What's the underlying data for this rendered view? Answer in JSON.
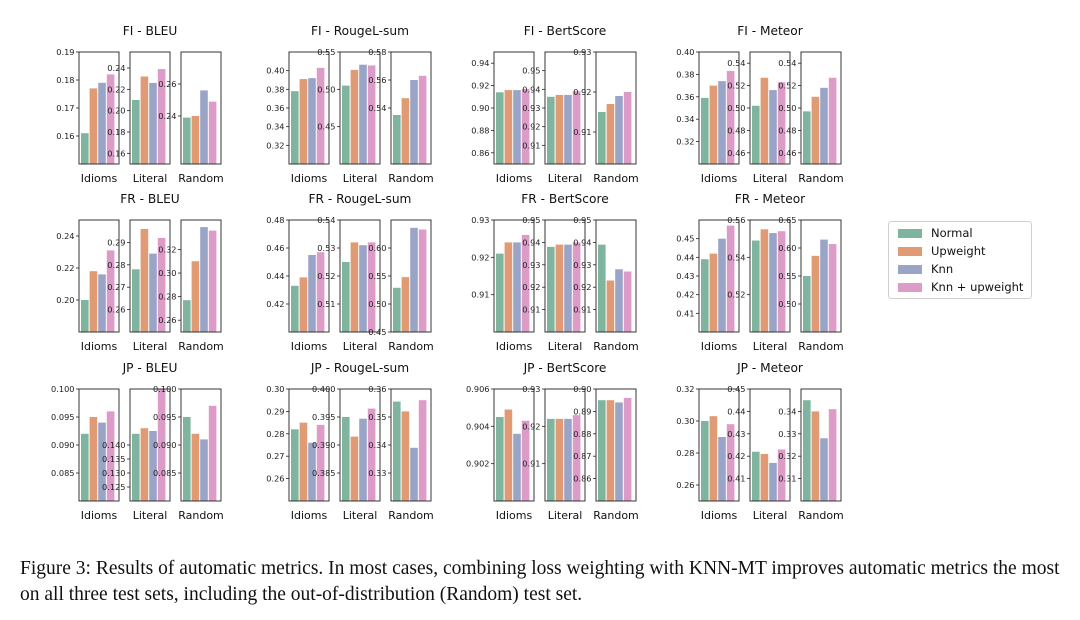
{
  "colors": {
    "Normal": "#7fb59e",
    "Upweight": "#e09a74",
    "Knn": "#9aa4c6",
    "Knn + upweight": "#dd9bc8"
  },
  "legend": {
    "items": [
      {
        "label": "Normal",
        "color": "#7fb59e"
      },
      {
        "label": "Upweight",
        "color": "#e09a74"
      },
      {
        "label": "Knn",
        "color": "#9aa4c6"
      },
      {
        "label": "Knn + upweight",
        "color": "#dd9bc8"
      }
    ]
  },
  "caption": "Figure 3: Results of automatic metrics. In most cases, combining loss weighting with KNN-MT improves automatic metrics the most on all three test sets, including the out-of-distribution (Random) test set.",
  "chart_data": {
    "type": "bar",
    "series_names": [
      "Normal",
      "Upweight",
      "Knn",
      "Knn + upweight"
    ],
    "panels": [
      {
        "title": "FI - BLEU",
        "groups": [
          {
            "label": "Idioms",
            "ylim": [
              0.15,
              0.19
            ],
            "ticks": [
              0.16,
              0.17,
              0.18,
              0.19
            ],
            "tick_labels": [
              "0.16",
              "0.17",
              "0.18",
              "0.19"
            ],
            "values": [
              0.161,
              0.177,
              0.179,
              0.182
            ]
          },
          {
            "label": "Literal",
            "ylim": [
              0.15,
              0.255
            ],
            "ticks": [
              0.16,
              0.18,
              0.2,
              0.22,
              0.24
            ],
            "tick_labels": [
              "0.16",
              "0.18",
              "0.20",
              "0.22",
              "0.24"
            ],
            "values": [
              0.21,
              0.232,
              0.226,
              0.239
            ]
          },
          {
            "label": "Random",
            "ylim": [
              0.21,
              0.28
            ],
            "ticks": [
              0.24,
              0.26
            ],
            "tick_labels": [
              "0.24",
              "0.26"
            ],
            "values": [
              0.239,
              0.24,
              0.256,
              0.249
            ]
          }
        ]
      },
      {
        "title": "FI - RougeL-sum",
        "groups": [
          {
            "label": "Idioms",
            "ylim": [
              0.3,
              0.42
            ],
            "ticks": [
              0.32,
              0.34,
              0.36,
              0.38,
              0.4
            ],
            "tick_labels": [
              "0.32",
              "0.34",
              "0.36",
              "0.38",
              "0.40"
            ],
            "values": [
              0.378,
              0.391,
              0.392,
              0.403
            ]
          },
          {
            "label": "Literal",
            "ylim": [
              0.4,
              0.55
            ],
            "ticks": [
              0.45,
              0.5,
              0.55
            ],
            "tick_labels": [
              "0.45",
              "0.50",
              "0.55"
            ],
            "values": [
              0.505,
              0.526,
              0.533,
              0.532
            ]
          },
          {
            "label": "Random",
            "ylim": [
              0.5,
              0.58
            ],
            "ticks": [
              0.54,
              0.56,
              0.58
            ],
            "tick_labels": [
              "0.54",
              "0.56",
              "0.58"
            ],
            "values": [
              0.535,
              0.547,
              0.56,
              0.563
            ]
          }
        ]
      },
      {
        "title": "FI - BertScore",
        "groups": [
          {
            "label": "Idioms",
            "ylim": [
              0.85,
              0.95
            ],
            "ticks": [
              0.86,
              0.88,
              0.9,
              0.92,
              0.94
            ],
            "tick_labels": [
              "0.86",
              "0.88",
              "0.90",
              "0.92",
              "0.94"
            ],
            "values": [
              0.914,
              0.916,
              0.916,
              0.917
            ]
          },
          {
            "label": "Literal",
            "ylim": [
              0.9,
              0.96
            ],
            "ticks": [
              0.91,
              0.92,
              0.93,
              0.94,
              0.95
            ],
            "tick_labels": [
              "0.91",
              "0.92",
              "0.93",
              "0.94",
              "0.95"
            ],
            "values": [
              0.936,
              0.937,
              0.937,
              0.939
            ]
          },
          {
            "label": "Random",
            "ylim": [
              0.902,
              0.93
            ],
            "ticks": [
              0.91,
              0.92,
              0.93
            ],
            "tick_labels": [
              "0.91",
              "0.92",
              "0.93"
            ],
            "values": [
              0.915,
              0.917,
              0.919,
              0.92
            ]
          }
        ]
      },
      {
        "title": "FI - Meteor",
        "groups": [
          {
            "label": "Idioms",
            "ylim": [
              0.3,
              0.4
            ],
            "ticks": [
              0.32,
              0.34,
              0.36,
              0.38,
              0.4
            ],
            "tick_labels": [
              "0.32",
              "0.34",
              "0.36",
              "0.38",
              "0.40"
            ],
            "values": [
              0.359,
              0.37,
              0.374,
              0.383
            ]
          },
          {
            "label": "Literal",
            "ylim": [
              0.45,
              0.55
            ],
            "ticks": [
              0.46,
              0.48,
              0.5,
              0.52,
              0.54
            ],
            "tick_labels": [
              "0.46",
              "0.48",
              "0.50",
              "0.52",
              "0.54"
            ],
            "values": [
              0.502,
              0.527,
              0.516,
              0.523
            ]
          },
          {
            "label": "Random",
            "ylim": [
              0.45,
              0.55
            ],
            "ticks": [
              0.46,
              0.48,
              0.5,
              0.52,
              0.54
            ],
            "tick_labels": [
              "0.46",
              "0.48",
              "0.50",
              "0.52",
              "0.54"
            ],
            "values": [
              0.497,
              0.51,
              0.518,
              0.527
            ]
          }
        ]
      },
      {
        "title": "FR - BLEU",
        "groups": [
          {
            "label": "Idioms",
            "ylim": [
              0.18,
              0.25
            ],
            "ticks": [
              0.2,
              0.22,
              0.24
            ],
            "tick_labels": [
              "0.20",
              "0.22",
              "0.24"
            ],
            "values": [
              0.2,
              0.218,
              0.216,
              0.231
            ]
          },
          {
            "label": "Literal",
            "ylim": [
              0.25,
              0.3
            ],
            "ticks": [
              0.26,
              0.27,
              0.28,
              0.29
            ],
            "tick_labels": [
              "0.26",
              "0.27",
              "0.28",
              "0.29"
            ],
            "values": [
              0.278,
              0.296,
              0.285,
              0.292
            ]
          },
          {
            "label": "Random",
            "ylim": [
              0.25,
              0.345
            ],
            "ticks": [
              0.26,
              0.28,
              0.3,
              0.32
            ],
            "tick_labels": [
              "0.26",
              "0.28",
              "0.30",
              "0.32"
            ],
            "values": [
              0.277,
              0.31,
              0.339,
              0.336
            ]
          }
        ]
      },
      {
        "title": "FR - RougeL-sum",
        "groups": [
          {
            "label": "Idioms",
            "ylim": [
              0.4,
              0.48
            ],
            "ticks": [
              0.42,
              0.44,
              0.46,
              0.48
            ],
            "tick_labels": [
              "0.42",
              "0.44",
              "0.46",
              "0.48"
            ],
            "values": [
              0.433,
              0.439,
              0.455,
              0.457
            ]
          },
          {
            "label": "Literal",
            "ylim": [
              0.5,
              0.54
            ],
            "ticks": [
              0.51,
              0.52,
              0.53,
              0.54
            ],
            "tick_labels": [
              "0.51",
              "0.52",
              "0.53",
              "0.54"
            ],
            "values": [
              0.525,
              0.532,
              0.531,
              0.532
            ]
          },
          {
            "label": "Random",
            "ylim": [
              0.45,
              0.65
            ],
            "ticks": [
              0.45,
              0.5,
              0.55,
              0.6
            ],
            "tick_labels": [
              "0.45",
              "0.50",
              "0.55",
              "0.60"
            ],
            "values": [
              0.529,
              0.548,
              0.636,
              0.633
            ]
          }
        ]
      },
      {
        "title": "FR - BertScore",
        "groups": [
          {
            "label": "Idioms",
            "ylim": [
              0.9,
              0.93
            ],
            "ticks": [
              0.91,
              0.92,
              0.93
            ],
            "tick_labels": [
              "0.91",
              "0.92",
              "0.93"
            ],
            "values": [
              0.921,
              0.924,
              0.924,
              0.926
            ]
          },
          {
            "label": "Literal",
            "ylim": [
              0.9,
              0.95
            ],
            "ticks": [
              0.91,
              0.92,
              0.93,
              0.94,
              0.95
            ],
            "tick_labels": [
              "0.91",
              "0.92",
              "0.93",
              "0.94",
              "0.95"
            ],
            "values": [
              0.938,
              0.939,
              0.939,
              0.94
            ]
          },
          {
            "label": "Random",
            "ylim": [
              0.9,
              0.95
            ],
            "ticks": [
              0.91,
              0.92,
              0.93,
              0.94,
              0.95
            ],
            "tick_labels": [
              "0.91",
              "0.92",
              "0.93",
              "0.94",
              "0.95"
            ],
            "values": [
              0.939,
              0.923,
              0.928,
              0.927
            ]
          }
        ]
      },
      {
        "title": "FR - Meteor",
        "groups": [
          {
            "label": "Idioms",
            "ylim": [
              0.4,
              0.46
            ],
            "ticks": [
              0.41,
              0.42,
              0.43,
              0.44,
              0.45
            ],
            "tick_labels": [
              "0.41",
              "0.42",
              "0.43",
              "0.44",
              "0.45"
            ],
            "values": [
              0.439,
              0.442,
              0.45,
              0.457
            ]
          },
          {
            "label": "Literal",
            "ylim": [
              0.5,
              0.56
            ],
            "ticks": [
              0.52,
              0.54,
              0.56
            ],
            "tick_labels": [
              "0.52",
              "0.54",
              "0.56"
            ],
            "values": [
              0.549,
              0.555,
              0.553,
              0.554
            ]
          },
          {
            "label": "Random",
            "ylim": [
              0.45,
              0.65
            ],
            "ticks": [
              0.5,
              0.55,
              0.6,
              0.65
            ],
            "tick_labels": [
              "0.50",
              "0.55",
              "0.60",
              "0.65"
            ],
            "values": [
              0.55,
              0.586,
              0.615,
              0.607
            ]
          }
        ]
      },
      {
        "title": "JP - BLEU",
        "groups": [
          {
            "label": "Idioms",
            "ylim": [
              0.08,
              0.1
            ],
            "ticks": [
              0.085,
              0.09,
              0.095,
              0.1
            ],
            "tick_labels": [
              "0.085",
              "0.090",
              "0.095",
              "0.100"
            ],
            "values": [
              0.092,
              0.095,
              0.094,
              0.096
            ]
          },
          {
            "label": "Literal",
            "ylim": [
              0.12,
              0.16
            ],
            "ticks": [
              0.125,
              0.13,
              0.135,
              0.14
            ],
            "tick_labels": [
              "0.125",
              "0.130",
              "0.135",
              "0.140"
            ],
            "values": [
              0.144,
              0.146,
              0.145,
              0.16
            ]
          },
          {
            "label": "Random",
            "ylim": [
              0.08,
              0.1
            ],
            "ticks": [
              0.085,
              0.09,
              0.095,
              0.1
            ],
            "tick_labels": [
              "0.085",
              "0.090",
              "0.095",
              "0.100"
            ],
            "values": [
              0.095,
              0.092,
              0.091,
              0.097
            ]
          }
        ]
      },
      {
        "title": "JP - RougeL-sum",
        "groups": [
          {
            "label": "Idioms",
            "ylim": [
              0.25,
              0.3
            ],
            "ticks": [
              0.26,
              0.27,
              0.28,
              0.29,
              0.3
            ],
            "tick_labels": [
              "0.26",
              "0.27",
              "0.28",
              "0.29",
              "0.30"
            ],
            "values": [
              0.282,
              0.285,
              0.276,
              0.284
            ]
          },
          {
            "label": "Literal",
            "ylim": [
              0.38,
              0.4
            ],
            "ticks": [
              0.385,
              0.39,
              0.395,
              0.4
            ],
            "tick_labels": [
              "0.385",
              "0.390",
              "0.395",
              "0.400"
            ],
            "values": [
              0.395,
              0.3915,
              0.3947,
              0.3965
            ]
          },
          {
            "label": "Random",
            "ylim": [
              0.32,
              0.36
            ],
            "ticks": [
              0.33,
              0.34,
              0.35,
              0.36
            ],
            "tick_labels": [
              "0.33",
              "0.34",
              "0.35",
              "0.36"
            ],
            "values": [
              0.3555,
              0.352,
              0.339,
              0.356
            ]
          }
        ]
      },
      {
        "title": "JP - BertScore",
        "groups": [
          {
            "label": "Idioms",
            "ylim": [
              0.9,
              0.906
            ],
            "ticks": [
              0.902,
              0.904,
              0.906
            ],
            "tick_labels": [
              "0.902",
              "0.904",
              "0.906"
            ],
            "values": [
              0.9045,
              0.9049,
              0.9036,
              0.9043
            ]
          },
          {
            "label": "Literal",
            "ylim": [
              0.9,
              0.93
            ],
            "ticks": [
              0.91,
              0.92,
              0.93
            ],
            "tick_labels": [
              "0.91",
              "0.92",
              "0.93"
            ],
            "values": [
              0.922,
              0.922,
              0.922,
              0.923
            ]
          },
          {
            "label": "Random",
            "ylim": [
              0.85,
              0.9
            ],
            "ticks": [
              0.86,
              0.87,
              0.88,
              0.89,
              0.9
            ],
            "tick_labels": [
              "0.86",
              "0.87",
              "0.88",
              "0.89",
              "0.90"
            ],
            "values": [
              0.895,
              0.895,
              0.894,
              0.896
            ]
          }
        ]
      },
      {
        "title": "JP - Meteor",
        "groups": [
          {
            "label": "Idioms",
            "ylim": [
              0.25,
              0.32
            ],
            "ticks": [
              0.26,
              0.28,
              0.3,
              0.32
            ],
            "tick_labels": [
              "0.26",
              "0.28",
              "0.30",
              "0.32"
            ],
            "values": [
              0.3,
              0.303,
              0.29,
              0.298
            ]
          },
          {
            "label": "Literal",
            "ylim": [
              0.4,
              0.45
            ],
            "ticks": [
              0.41,
              0.42,
              0.43,
              0.44,
              0.45
            ],
            "tick_labels": [
              "0.41",
              "0.42",
              "0.43",
              "0.44",
              "0.45"
            ],
            "values": [
              0.422,
              0.421,
              0.417,
              0.423
            ]
          },
          {
            "label": "Random",
            "ylim": [
              0.3,
              0.35
            ],
            "ticks": [
              0.31,
              0.32,
              0.33,
              0.34
            ],
            "tick_labels": [
              "0.31",
              "0.32",
              "0.33",
              "0.34"
            ],
            "values": [
              0.345,
              0.34,
              0.328,
              0.341
            ]
          }
        ]
      }
    ]
  }
}
